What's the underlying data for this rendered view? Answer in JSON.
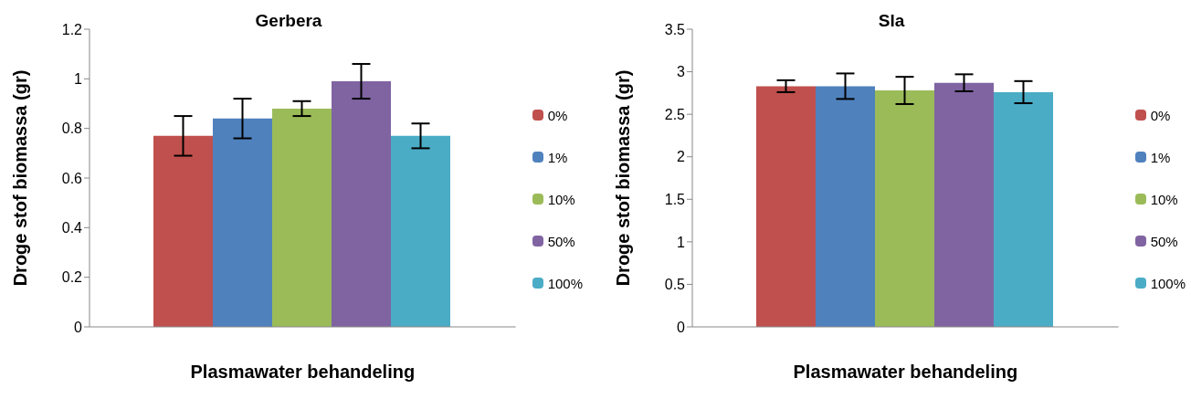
{
  "chart_data": [
    {
      "type": "bar",
      "title": "Gerbera",
      "xlabel": "Plasmawater behandeling",
      "ylabel": "Droge stof biomassa (gr)",
      "categories": [
        null
      ],
      "series": [
        {
          "name": "0%",
          "color": "#c0504d",
          "values": [
            0.77
          ],
          "errors": [
            0.08
          ]
        },
        {
          "name": "1%",
          "color": "#4f81bd",
          "values": [
            0.84
          ],
          "errors": [
            0.08
          ]
        },
        {
          "name": "10%",
          "color": "#9bbb59",
          "values": [
            0.88
          ],
          "errors": [
            0.03
          ]
        },
        {
          "name": "50%",
          "color": "#8064a2",
          "values": [
            0.99
          ],
          "errors": [
            0.07
          ]
        },
        {
          "name": "100%",
          "color": "#4bacc6",
          "values": [
            0.77
          ],
          "errors": [
            0.05
          ]
        }
      ],
      "ylim": [
        0,
        1.2
      ],
      "yticks": [
        0,
        0.2,
        0.4,
        0.6,
        0.8,
        1,
        1.2
      ],
      "grid": false,
      "legend": "right"
    },
    {
      "type": "bar",
      "title": "Sla",
      "xlabel": "Plasmawater behandeling",
      "ylabel": "Droge stof biomassa (gr)",
      "categories": [
        null
      ],
      "series": [
        {
          "name": "0%",
          "color": "#c0504d",
          "values": [
            2.83
          ],
          "errors": [
            0.07
          ]
        },
        {
          "name": "1%",
          "color": "#4f81bd",
          "values": [
            2.83
          ],
          "errors": [
            0.15
          ]
        },
        {
          "name": "10%",
          "color": "#9bbb59",
          "values": [
            2.78
          ],
          "errors": [
            0.16
          ]
        },
        {
          "name": "50%",
          "color": "#8064a2",
          "values": [
            2.87
          ],
          "errors": [
            0.1
          ]
        },
        {
          "name": "100%",
          "color": "#4bacc6",
          "values": [
            2.76
          ],
          "errors": [
            0.13
          ]
        }
      ],
      "ylim": [
        0,
        3.5
      ],
      "yticks": [
        0,
        0.5,
        1,
        1.5,
        2,
        2.5,
        3,
        3.5
      ],
      "grid": false,
      "legend": "right"
    }
  ]
}
